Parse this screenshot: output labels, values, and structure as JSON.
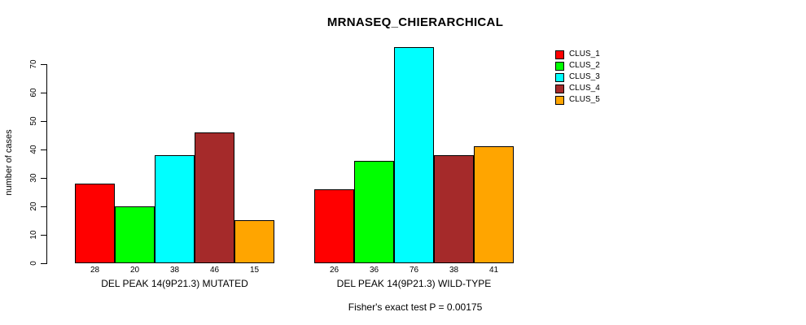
{
  "chart_data": {
    "type": "bar",
    "title": "MRNASEQ_CHIERARCHICAL",
    "ylabel": "number of cases",
    "xlabel": "",
    "ylim": [
      0,
      76
    ],
    "yticks": [
      0,
      10,
      20,
      30,
      40,
      50,
      60,
      70
    ],
    "grid": false,
    "legend_position": "right",
    "bar_value_labels": true,
    "categories": [
      "DEL PEAK 14(9P21.3) MUTATED",
      "DEL PEAK 14(9P21.3) WILD-TYPE"
    ],
    "series": [
      {
        "name": "CLUS_1",
        "color": "#ff0000",
        "values": [
          28,
          26
        ]
      },
      {
        "name": "CLUS_2",
        "color": "#00ff00",
        "values": [
          20,
          36
        ]
      },
      {
        "name": "CLUS_3",
        "color": "#00ffff",
        "values": [
          38,
          76
        ]
      },
      {
        "name": "CLUS_4",
        "color": "#a52a2a",
        "values": [
          46,
          38
        ]
      },
      {
        "name": "CLUS_5",
        "color": "#ffa500",
        "values": [
          15,
          41
        ]
      }
    ],
    "annotation": "Fisher's exact test P = 0.00175"
  },
  "colors": {
    "background": "#ffffff",
    "text": "#000000",
    "bar_border": "#000000"
  }
}
